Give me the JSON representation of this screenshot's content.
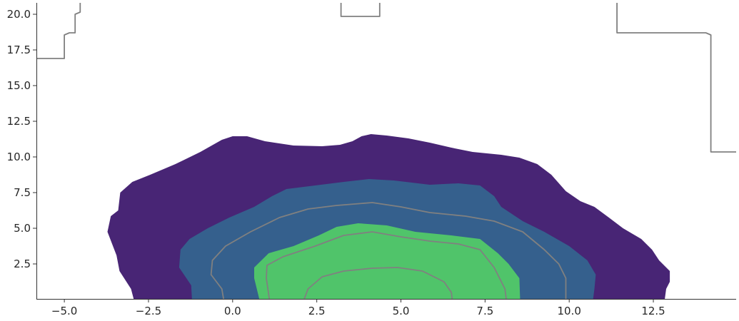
{
  "chart_data": {
    "type": "contour",
    "title": "",
    "xlabel": "",
    "ylabel": "",
    "xlim": [
      -5.83,
      14.96
    ],
    "ylim": [
      0.05,
      20.8
    ],
    "grid": false,
    "x_ticks": [
      "−5.0",
      "−2.5",
      "0.0",
      "2.5",
      "5.0",
      "7.5",
      "10.0",
      "12.5"
    ],
    "x_tick_values": [
      -5,
      -2.5,
      0,
      2.5,
      5,
      7.5,
      10,
      12.5
    ],
    "y_ticks": [
      "2.5",
      "5.0",
      "7.5",
      "10.0",
      "12.5",
      "15.0",
      "17.5",
      "20.0"
    ],
    "y_tick_values": [
      2.5,
      5,
      7.5,
      10,
      12.5,
      15,
      17.5,
      20
    ],
    "filled_levels": [
      {
        "color": "#482575",
        "points": [
          [
            -2.94,
            0.05
          ],
          [
            -3.02,
            0.75
          ],
          [
            -3.36,
            2.0
          ],
          [
            -3.45,
            3.1
          ],
          [
            -3.72,
            4.75
          ],
          [
            -3.62,
            5.85
          ],
          [
            -3.4,
            6.25
          ],
          [
            -3.34,
            7.5
          ],
          [
            -2.98,
            8.25
          ],
          [
            -2.45,
            8.75
          ],
          [
            -1.7,
            9.5
          ],
          [
            -0.96,
            10.35
          ],
          [
            -0.32,
            11.2
          ],
          [
            0.0,
            11.45
          ],
          [
            0.43,
            11.45
          ],
          [
            0.96,
            11.1
          ],
          [
            1.81,
            10.8
          ],
          [
            2.66,
            10.75
          ],
          [
            3.19,
            10.85
          ],
          [
            3.56,
            11.1
          ],
          [
            3.83,
            11.45
          ],
          [
            4.11,
            11.6
          ],
          [
            4.58,
            11.5
          ],
          [
            5.22,
            11.3
          ],
          [
            5.86,
            11.0
          ],
          [
            6.5,
            10.65
          ],
          [
            7.13,
            10.35
          ],
          [
            7.98,
            10.15
          ],
          [
            8.52,
            9.95
          ],
          [
            9.05,
            9.5
          ],
          [
            9.47,
            8.75
          ],
          [
            9.9,
            7.6
          ],
          [
            10.33,
            6.9
          ],
          [
            10.75,
            6.5
          ],
          [
            11.18,
            5.75
          ],
          [
            11.6,
            5.0
          ],
          [
            12.14,
            4.25
          ],
          [
            12.46,
            3.5
          ],
          [
            12.67,
            2.75
          ],
          [
            12.99,
            2.0
          ],
          [
            12.99,
            1.25
          ],
          [
            12.88,
            0.75
          ],
          [
            12.84,
            0.05
          ]
        ]
      },
      {
        "color": "#35608d",
        "points": [
          [
            -1.21,
            0.05
          ],
          [
            -1.23,
            1.0
          ],
          [
            -1.59,
            2.25
          ],
          [
            -1.55,
            3.5
          ],
          [
            -1.28,
            4.25
          ],
          [
            -0.74,
            5.0
          ],
          [
            -0.1,
            5.75
          ],
          [
            0.64,
            6.5
          ],
          [
            1.17,
            7.25
          ],
          [
            1.6,
            7.75
          ],
          [
            2.45,
            8.0
          ],
          [
            3.3,
            8.25
          ],
          [
            4.05,
            8.45
          ],
          [
            4.79,
            8.35
          ],
          [
            5.86,
            8.05
          ],
          [
            6.71,
            8.15
          ],
          [
            7.35,
            8.0
          ],
          [
            7.77,
            7.25
          ],
          [
            7.98,
            6.5
          ],
          [
            8.62,
            5.5
          ],
          [
            9.26,
            4.75
          ],
          [
            10.0,
            3.75
          ],
          [
            10.54,
            2.75
          ],
          [
            10.79,
            1.75
          ],
          [
            10.75,
            0.75
          ],
          [
            10.71,
            0.05
          ]
        ]
      },
      {
        "color": "#50c46a",
        "points": [
          [
            0.79,
            0.05
          ],
          [
            0.64,
            1.5
          ],
          [
            0.64,
            2.25
          ],
          [
            1.07,
            3.25
          ],
          [
            1.81,
            3.75
          ],
          [
            2.56,
            4.5
          ],
          [
            3.09,
            5.1
          ],
          [
            3.73,
            5.35
          ],
          [
            4.58,
            5.2
          ],
          [
            5.43,
            4.75
          ],
          [
            6.5,
            4.5
          ],
          [
            7.35,
            4.25
          ],
          [
            7.88,
            3.25
          ],
          [
            8.2,
            2.5
          ],
          [
            8.52,
            1.5
          ],
          [
            8.54,
            0.05
          ]
        ]
      }
    ],
    "line_color": "#808080",
    "line_contours": [
      [
        [
          -0.27,
          0.05
        ],
        [
          -0.32,
          0.75
        ],
        [
          -0.64,
          1.75
        ],
        [
          -0.6,
          2.75
        ],
        [
          -0.21,
          3.75
        ],
        [
          0.53,
          4.75
        ],
        [
          1.39,
          5.75
        ],
        [
          2.24,
          6.35
        ],
        [
          3.09,
          6.6
        ],
        [
          4.15,
          6.8
        ],
        [
          5.0,
          6.5
        ],
        [
          5.86,
          6.1
        ],
        [
          6.92,
          5.85
        ],
        [
          7.77,
          5.5
        ],
        [
          8.62,
          4.75
        ],
        [
          9.26,
          3.5
        ],
        [
          9.69,
          2.5
        ],
        [
          9.9,
          1.5
        ],
        [
          9.9,
          0.05
        ]
      ],
      [
        [
          1.09,
          0.05
        ],
        [
          1.0,
          1.5
        ],
        [
          1.02,
          2.4
        ],
        [
          1.49,
          3.0
        ],
        [
          2.45,
          3.75
        ],
        [
          3.3,
          4.5
        ],
        [
          4.15,
          4.75
        ],
        [
          5.0,
          4.4
        ],
        [
          5.86,
          4.1
        ],
        [
          6.71,
          3.9
        ],
        [
          7.35,
          3.5
        ],
        [
          7.77,
          2.25
        ],
        [
          8.09,
          0.75
        ],
        [
          8.13,
          0.05
        ]
      ],
      [
        [
          2.13,
          0.05
        ],
        [
          2.24,
          0.75
        ],
        [
          2.66,
          1.6
        ],
        [
          3.3,
          2.0
        ],
        [
          4.15,
          2.2
        ],
        [
          4.9,
          2.25
        ],
        [
          5.64,
          2.0
        ],
        [
          6.28,
          1.25
        ],
        [
          6.5,
          0.5
        ],
        [
          6.52,
          0.05
        ]
      ],
      [
        [
          -5.83,
          16.9
        ],
        [
          -5.0,
          16.9
        ],
        [
          -5.0,
          18.55
        ],
        [
          -4.85,
          18.7
        ],
        [
          -4.68,
          18.7
        ],
        [
          -4.68,
          20.0
        ],
        [
          -4.53,
          20.15
        ],
        [
          -4.53,
          20.8
        ]
      ],
      [
        [
          3.22,
          20.8
        ],
        [
          3.22,
          19.85
        ],
        [
          4.37,
          19.85
        ],
        [
          4.37,
          20.8
        ]
      ],
      [
        [
          11.42,
          20.8
        ],
        [
          11.42,
          18.7
        ],
        [
          14.06,
          18.7
        ],
        [
          14.21,
          18.55
        ],
        [
          14.21,
          10.35
        ],
        [
          14.96,
          10.35
        ]
      ]
    ]
  }
}
